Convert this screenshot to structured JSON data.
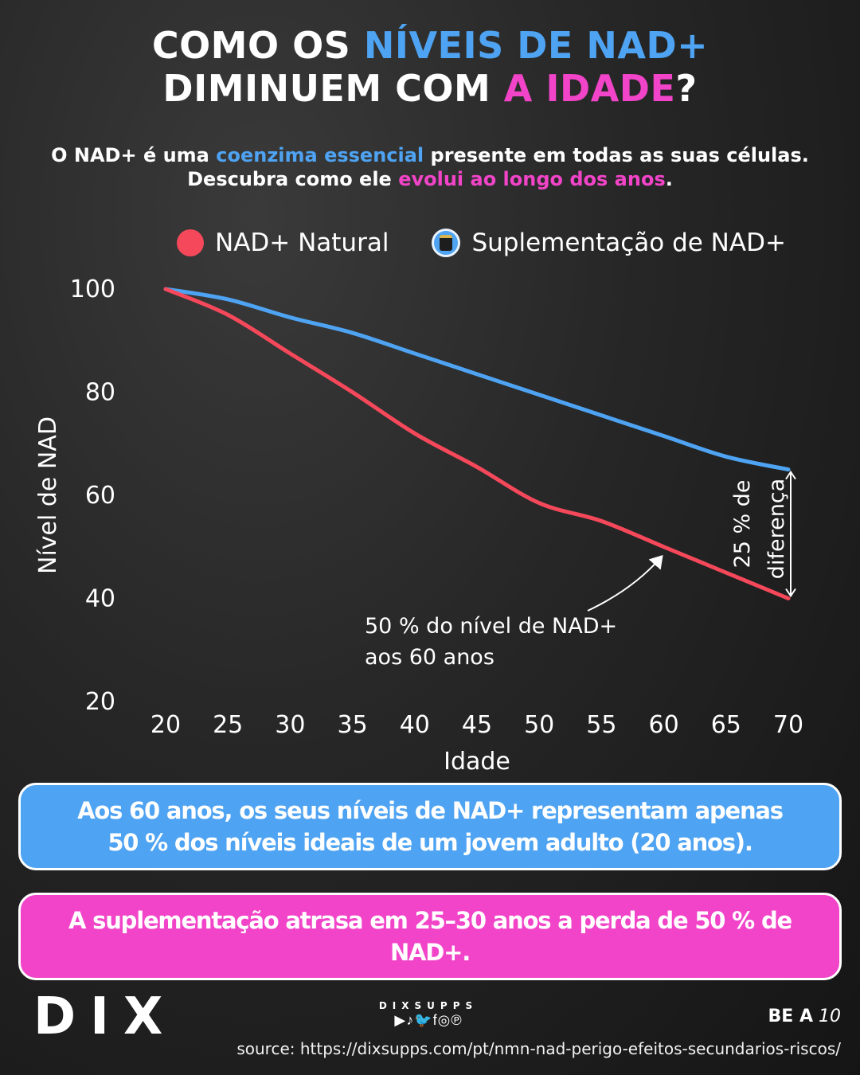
{
  "header": {
    "title_line1_a": "COMO OS ",
    "title_line1_b": "NÍVEIS DE NAD+",
    "title_line2_a": "DIMINUEM COM ",
    "title_line2_b": "A IDADE",
    "title_line2_c": "?",
    "subtitle_1a": "O NAD+ é uma ",
    "subtitle_1b": "coenzima essencial",
    "subtitle_1c": " presente em todas as suas células.",
    "subtitle_2a": "Descubra como ele ",
    "subtitle_2b": "evolui ao longo dos anos",
    "subtitle_2c": "."
  },
  "legend": {
    "natural_label": "NAD+ Natural",
    "supplement_label": "Suplementação de NAD+"
  },
  "colors": {
    "blue": "#4ea3f2",
    "pink": "#f244c8",
    "red": "#f5485a"
  },
  "chart_data": {
    "type": "line",
    "xlabel": "Idade",
    "ylabel": "Nível de NAD",
    "x": [
      20,
      25,
      30,
      35,
      40,
      45,
      50,
      55,
      60,
      65,
      70
    ],
    "x_ticks": [
      "20",
      "25",
      "30",
      "35",
      "40",
      "45",
      "50",
      "55",
      "60",
      "65",
      "70"
    ],
    "y_ticks": [
      "100",
      "80",
      "60",
      "40",
      "20"
    ],
    "ylim": [
      20,
      100
    ],
    "xlim": [
      20,
      70
    ],
    "series": [
      {
        "name": "NAD+ Natural",
        "color": "#f5485a",
        "values": [
          100,
          95,
          87.5,
          80,
          72,
          65.5,
          58.5,
          55,
          50,
          45,
          40
        ]
      },
      {
        "name": "Suplementação de NAD+",
        "color": "#4ea3f2",
        "values": [
          100,
          98,
          94.5,
          91.5,
          87.5,
          83.5,
          79.5,
          75.5,
          71.5,
          67.5,
          65
        ]
      }
    ],
    "annotations": {
      "note_line1": "50 % do nível de NAD+",
      "note_line2": "aos 60 anos",
      "diff_line1": "25 % de",
      "diff_line2": "diferença"
    }
  },
  "boxes": {
    "blue_text": "Aos 60 anos, os seus níveis de NAD+ representam apenas 50 % dos níveis ideais de um jovem adulto (20 anos).",
    "pink_text": "A suplementação atrasa em 25–30 anos a perda de 50 % de NAD+."
  },
  "footer": {
    "logo": "DIX",
    "social_brand": "DIXSUPPS",
    "social_icons": "▶♪🐦f◎℗",
    "page_bold": "BE A",
    "page_italic": "10",
    "source": "source: https://dixsupps.com/pt/nmn-nad-perigo-efeitos-secundarios-riscos/"
  }
}
